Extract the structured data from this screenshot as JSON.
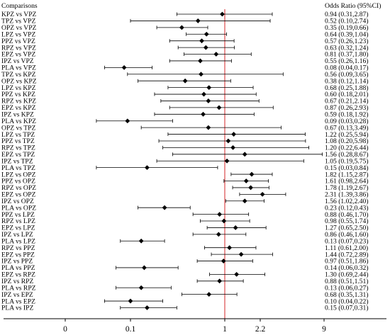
{
  "chart_data": {
    "type": "forest",
    "header_left": "Comparisons",
    "header_right": "Odds Ratio (95%CI)",
    "reference_value": 1,
    "x_ticks": [
      {
        "value": 0.01,
        "label": "0"
      },
      {
        "value": 0.1,
        "label": "0.1"
      },
      {
        "value": 1,
        "label": "1"
      },
      {
        "value": 2.2,
        "label": "2.2"
      },
      {
        "value": 9,
        "label": "9"
      }
    ],
    "rows": [
      {
        "label": "KPZ vs VPZ",
        "or": 0.94,
        "lo": 0.31,
        "hi": 2.87,
        "text": "0.94 (0.31,2.87)"
      },
      {
        "label": "TPZ vs VPZ",
        "or": 0.52,
        "lo": 0.1,
        "hi": 2.74,
        "text": "0.52 (0.10,2.74)"
      },
      {
        "label": "OPZ vs VPZ",
        "or": 0.35,
        "lo": 0.19,
        "hi": 0.66,
        "text": "0.35 (0.19,0.66)"
      },
      {
        "label": "LPZ vs VPZ",
        "or": 0.64,
        "lo": 0.39,
        "hi": 1.04,
        "text": "0.64 (0.39,1.04)"
      },
      {
        "label": "PPZ vs VPZ",
        "or": 0.57,
        "lo": 0.26,
        "hi": 1.23,
        "text": "0.57 (0.26,1.23)"
      },
      {
        "label": "RPZ vs VPZ",
        "or": 0.63,
        "lo": 0.32,
        "hi": 1.24,
        "text": "0.63 (0.32,1.24)"
      },
      {
        "label": "EPZ vs VPZ",
        "or": 0.81,
        "lo": 0.37,
        "hi": 1.8,
        "text": "0.81 (0.37,1.80)"
      },
      {
        "label": "IPZ vs VPZ",
        "or": 0.55,
        "lo": 0.26,
        "hi": 1.16,
        "text": "0.55 (0.26,1.16)"
      },
      {
        "label": "PLA vs VPZ",
        "or": 0.08,
        "lo": 0.04,
        "hi": 0.17,
        "text": "0.08 (0.04,0.17)"
      },
      {
        "label": "TPZ vs KPZ",
        "or": 0.56,
        "lo": 0.09,
        "hi": 3.65,
        "text": "0.56 (0.09,3.65)"
      },
      {
        "label": "OPZ vs KPZ",
        "or": 0.38,
        "lo": 0.12,
        "hi": 1.14,
        "text": "0.38 (0.12,1.14)"
      },
      {
        "label": "LPZ vs KPZ",
        "or": 0.68,
        "lo": 0.25,
        "hi": 1.88,
        "text": "0.68 (0.25,1.88)"
      },
      {
        "label": "PPZ vs KPZ",
        "or": 0.6,
        "lo": 0.18,
        "hi": 2.01,
        "text": "0.60 (0.18,2.01)"
      },
      {
        "label": "RPZ vs KPZ",
        "or": 0.67,
        "lo": 0.21,
        "hi": 2.14,
        "text": "0.67 (0.21,2.14)"
      },
      {
        "label": "EPZ vs KPZ",
        "or": 0.87,
        "lo": 0.26,
        "hi": 2.93,
        "text": "0.87 (0.26,2.93)"
      },
      {
        "label": "IPZ vs KPZ",
        "or": 0.59,
        "lo": 0.18,
        "hi": 1.92,
        "text": "0.59 (0.18,1.92)"
      },
      {
        "label": "PLA vs KPZ",
        "or": 0.09,
        "lo": 0.03,
        "hi": 0.28,
        "text": "0.09 (0.03,0.28)"
      },
      {
        "label": "OPZ vs TPZ",
        "or": 0.67,
        "lo": 0.13,
        "hi": 3.49,
        "text": "0.67 (0.13,3.49)"
      },
      {
        "label": "LPZ vs TPZ",
        "or": 1.22,
        "lo": 0.25,
        "hi": 5.94,
        "text": "1.22 (0.25,5.94)"
      },
      {
        "label": "PPZ vs TPZ",
        "or": 1.08,
        "lo": 0.2,
        "hi": 5.98,
        "text": "1.08 (0.20,5.98)"
      },
      {
        "label": "RPZ vs TPZ",
        "or": 1.2,
        "lo": 0.22,
        "hi": 6.44,
        "text": "1.20 (0.22,6.44)"
      },
      {
        "label": "EPZ vs TPZ",
        "or": 1.56,
        "lo": 0.28,
        "hi": 8.67,
        "text": "1.56 (0.28,8.67)"
      },
      {
        "label": "IPZ vs TPZ",
        "or": 1.05,
        "lo": 0.19,
        "hi": 5.75,
        "text": "1.05 (0.19,5.75)"
      },
      {
        "label": "PLA vs TPZ",
        "or": 0.15,
        "lo": 0.03,
        "hi": 0.84,
        "text": "0.15 (0.03,0.84)"
      },
      {
        "label": "LPZ vs OPZ",
        "or": 1.82,
        "lo": 1.15,
        "hi": 2.87,
        "text": "1.82 (1.15,2.87)"
      },
      {
        "label": "PPZ vs OPZ",
        "or": 1.61,
        "lo": 0.98,
        "hi": 2.64,
        "text": "1.61 (0.98,2.64)"
      },
      {
        "label": "RPZ vs OPZ",
        "or": 1.78,
        "lo": 1.19,
        "hi": 2.67,
        "text": "1.78 (1.19,2.67)"
      },
      {
        "label": "EPZ vs OPZ",
        "or": 2.31,
        "lo": 1.39,
        "hi": 3.86,
        "text": "2.31 (1.39,3.86)"
      },
      {
        "label": "IPZ vs OPZ",
        "or": 1.56,
        "lo": 1.02,
        "hi": 2.4,
        "text": "1.56 (1.02,2.40)"
      },
      {
        "label": "PLA vs OPZ",
        "or": 0.23,
        "lo": 0.12,
        "hi": 0.43,
        "text": "0.23 (0.12,0.43)"
      },
      {
        "label": "PPZ vs LPZ",
        "or": 0.88,
        "lo": 0.46,
        "hi": 1.7,
        "text": "0.88 (0.46,1.70)"
      },
      {
        "label": "RPZ vs LPZ",
        "or": 0.98,
        "lo": 0.55,
        "hi": 1.74,
        "text": "0.98 (0.55,1.74)"
      },
      {
        "label": "EPZ vs LPZ",
        "or": 1.27,
        "lo": 0.65,
        "hi": 2.5,
        "text": "1.27 (0.65,2.50)"
      },
      {
        "label": "IPZ vs LPZ",
        "or": 0.86,
        "lo": 0.46,
        "hi": 1.6,
        "text": "0.86 (0.46,1.60)"
      },
      {
        "label": "PLA vs LPZ",
        "or": 0.13,
        "lo": 0.07,
        "hi": 0.23,
        "text": "0.13 (0.07,0.23)"
      },
      {
        "label": "RPZ vs PPZ",
        "or": 1.11,
        "lo": 0.61,
        "hi": 2.0,
        "text": "1.11 (0.61,2.00)"
      },
      {
        "label": "EPZ vs PPZ",
        "or": 1.44,
        "lo": 0.72,
        "hi": 2.89,
        "text": "1.44 (0.72,2.89)"
      },
      {
        "label": "IPZ vs PPZ",
        "or": 0.97,
        "lo": 0.51,
        "hi": 1.86,
        "text": "0.97 (0.51,1.86)"
      },
      {
        "label": "PLA vs PPZ",
        "or": 0.14,
        "lo": 0.06,
        "hi": 0.32,
        "text": "0.14 (0.06,0.32)"
      },
      {
        "label": "EPZ vs RPZ",
        "or": 1.3,
        "lo": 0.69,
        "hi": 2.44,
        "text": "1.30 (0.69,2.44)"
      },
      {
        "label": "IPZ vs RPZ",
        "or": 0.88,
        "lo": 0.51,
        "hi": 1.51,
        "text": "0.88 (0.51,1.51)"
      },
      {
        "label": "PLA vs RPZ",
        "or": 0.13,
        "lo": 0.06,
        "hi": 0.27,
        "text": "0.13 (0.06,0.27)"
      },
      {
        "label": "IPZ vs EPZ",
        "or": 0.68,
        "lo": 0.35,
        "hi": 1.31,
        "text": "0.68 (0.35,1.31)"
      },
      {
        "label": "PLA vs EPZ",
        "or": 0.1,
        "lo": 0.04,
        "hi": 0.22,
        "text": "0.10 (0.04,0.22)"
      },
      {
        "label": "PLA vs IPZ",
        "or": 0.15,
        "lo": 0.07,
        "hi": 0.31,
        "text": "0.15 (0.07,0.31)"
      }
    ],
    "colors": {
      "reference_line": "#d62728",
      "markers": "#000000",
      "axis": "#000000"
    }
  }
}
